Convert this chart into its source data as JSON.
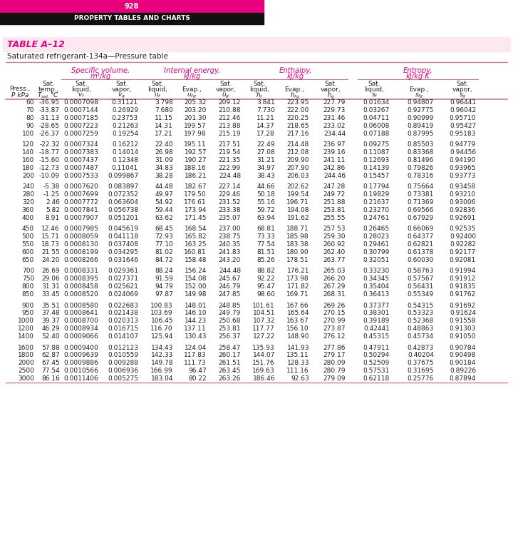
{
  "page_num": "928",
  "header_title": "PROPERTY TABLES AND CHARTS",
  "table_label": "TABLE A–12",
  "subtitle": "Saturated refrigerant-134a—Pressure table",
  "magenta": "#e6007e",
  "dark": "#1a1a1a",
  "pink_bg": "#fce8f0",
  "line_color": "#d4789a",
  "text_color": "#222222",
  "rows": [
    [
      60,
      -36.95,
      "0.0007098",
      "0.31121",
      "3.798",
      "205.32",
      "209.12",
      "3.841",
      "223.95",
      "227.79",
      "0.01634",
      "0.94807",
      "0.96441"
    ],
    [
      70,
      -33.87,
      "0.0007144",
      "0.26929",
      "7.680",
      "203.20",
      "210.88",
      "7.730",
      "222.00",
      "229.73",
      "0.03267",
      "0.92775",
      "0.96042"
    ],
    [
      80,
      -31.13,
      "0.0007185",
      "0.23753",
      "11.15",
      "201.30",
      "212.46",
      "11.21",
      "220.25",
      "231.46",
      "0.04711",
      "0.90999",
      "0.95710"
    ],
    [
      90,
      -28.65,
      "0.0007223",
      "0.21263",
      "14.31",
      "199.57",
      "213.88",
      "14.37",
      "218.65",
      "233.02",
      "0.06008",
      "0.89419",
      "0.95427"
    ],
    [
      100,
      -26.37,
      "0.0007259",
      "0.19254",
      "17.21",
      "197.98",
      "215.19",
      "17.28",
      "217.16",
      "234.44",
      "0.07188",
      "0.87995",
      "0.95183"
    ],
    null,
    [
      120,
      -22.32,
      "0.0007324",
      "0.16212",
      "22.40",
      "195.11",
      "217.51",
      "22.49",
      "214.48",
      "236.97",
      "0.09275",
      "0.85503",
      "0.94779"
    ],
    [
      140,
      -18.77,
      "0.0007383",
      "0.14014",
      "26.98",
      "192.57",
      "219.54",
      "27.08",
      "212.08",
      "239.16",
      "0.11087",
      "0.83368",
      "0.94456"
    ],
    [
      160,
      -15.6,
      "0.0007437",
      "0.12348",
      "31.09",
      "190.27",
      "221.35",
      "31.21",
      "209.90",
      "241.11",
      "0.12693",
      "0.81496",
      "0.94190"
    ],
    [
      180,
      -12.73,
      "0.0007487",
      "0.11041",
      "34.83",
      "188.16",
      "222.99",
      "34.97",
      "207.90",
      "242.86",
      "0.14139",
      "0.79826",
      "0.93965"
    ],
    [
      200,
      -10.09,
      "0.0007533",
      "0.099867",
      "38.28",
      "186.21",
      "224.48",
      "38.43",
      "206.03",
      "244.46",
      "0.15457",
      "0.78316",
      "0.93773"
    ],
    null,
    [
      240,
      -5.38,
      "0.0007620",
      "0.083897",
      "44.48",
      "182.67",
      "227.14",
      "44.66",
      "202.62",
      "247.28",
      "0.17794",
      "0.75664",
      "0.93458"
    ],
    [
      280,
      -1.25,
      "0.0007699",
      "0.072352",
      "49.97",
      "179.50",
      "229.46",
      "50.18",
      "199.54",
      "249.72",
      "0.19829",
      "0.73381",
      "0.93210"
    ],
    [
      320,
      2.46,
      "0.0007772",
      "0.063604",
      "54.92",
      "176.61",
      "231.52",
      "55.16",
      "196.71",
      "251.88",
      "0.21637",
      "0.71369",
      "0.93006"
    ],
    [
      360,
      5.82,
      "0.0007841",
      "0.056738",
      "59.44",
      "173.94",
      "233.38",
      "59.72",
      "194.08",
      "253.81",
      "0.23270",
      "0.69566",
      "0.92836"
    ],
    [
      400,
      8.91,
      "0.0007907",
      "0.051201",
      "63.62",
      "171.45",
      "235.07",
      "63.94",
      "191.62",
      "255.55",
      "0.24761",
      "0.67929",
      "0.92691"
    ],
    null,
    [
      450,
      12.46,
      "0.0007985",
      "0.045619",
      "68.45",
      "168.54",
      "237.00",
      "68.81",
      "188.71",
      "257.53",
      "0.26465",
      "0.66069",
      "0.92535"
    ],
    [
      500,
      15.71,
      "0.0008059",
      "0.041118",
      "72.93",
      "165.82",
      "238.75",
      "73.33",
      "185.98",
      "259.30",
      "0.28023",
      "0.64377",
      "0.92400"
    ],
    [
      550,
      18.73,
      "0.0008130",
      "0.037408",
      "77.10",
      "163.25",
      "240.35",
      "77.54",
      "183.38",
      "260.92",
      "0.29461",
      "0.62821",
      "0.92282"
    ],
    [
      600,
      21.55,
      "0.0008199",
      "0.034295",
      "81.02",
      "160.81",
      "241.83",
      "81.51",
      "180.90",
      "262.40",
      "0.30799",
      "0.61378",
      "0.92177"
    ],
    [
      650,
      24.2,
      "0.0008266",
      "0.031646",
      "84.72",
      "158.48",
      "243.20",
      "85.26",
      "178.51",
      "263.77",
      "0.32051",
      "0.60030",
      "0.92081"
    ],
    null,
    [
      700,
      26.69,
      "0.0008331",
      "0.029361",
      "88.24",
      "156.24",
      "244.48",
      "88.82",
      "176.21",
      "265.03",
      "0.33230",
      "0.58763",
      "0.91994"
    ],
    [
      750,
      29.06,
      "0.0008395",
      "0.027371",
      "91.59",
      "154.08",
      "245.67",
      "92.22",
      "173.98",
      "266.20",
      "0.34345",
      "0.57567",
      "0.91912"
    ],
    [
      800,
      31.31,
      "0.0008458",
      "0.025621",
      "94.79",
      "152.00",
      "246.79",
      "95.47",
      "171.82",
      "267.29",
      "0.35404",
      "0.56431",
      "0.91835"
    ],
    [
      850,
      33.45,
      "0.0008520",
      "0.024069",
      "97.87",
      "149.98",
      "247.85",
      "98.60",
      "169.71",
      "268.31",
      "0.36413",
      "0.55349",
      "0.91762"
    ],
    null,
    [
      900,
      35.51,
      "0.0008580",
      "0.022683",
      "100.83",
      "148.01",
      "248.85",
      "101.61",
      "167.66",
      "269.26",
      "0.37377",
      "0.54315",
      "0.91692"
    ],
    [
      950,
      37.48,
      "0.0008641",
      "0.021438",
      "103.69",
      "146.10",
      "249.79",
      "104.51",
      "165.64",
      "270.15",
      "0.38301",
      "0.53323",
      "0.91624"
    ],
    [
      1000,
      39.37,
      "0.0008700",
      "0.020313",
      "106.45",
      "144.23",
      "250.68",
      "107.32",
      "163.67",
      "270.99",
      "0.39189",
      "0.52368",
      "0.91558"
    ],
    [
      1200,
      46.29,
      "0.0008934",
      "0.016715",
      "116.70",
      "137.11",
      "253.81",
      "117.77",
      "156.10",
      "273.87",
      "0.42441",
      "0.48863",
      "0.91303"
    ],
    [
      1400,
      52.4,
      "0.0009066",
      "0.014107",
      "125.94",
      "130.43",
      "256.37",
      "127.22",
      "148.90",
      "276.12",
      "0.45315",
      "0.45734",
      "0.91050"
    ],
    null,
    [
      1600,
      57.88,
      "0.0009400",
      "0.012123",
      "134.43",
      "124.04",
      "258.47",
      "135.93",
      "141.93",
      "277.86",
      "0.47911",
      "0.42873",
      "0.90784"
    ],
    [
      1800,
      62.87,
      "0.0009639",
      "0.010559",
      "142.33",
      "117.83",
      "260.17",
      "144.07",
      "135.11",
      "279.17",
      "0.50294",
      "0.40204",
      "0.90498"
    ],
    [
      2000,
      67.45,
      "0.0009886",
      "0.009288",
      "149.78",
      "111.73",
      "261.51",
      "151.76",
      "128.33",
      "280.09",
      "0.52509",
      "0.37675",
      "0.90184"
    ],
    [
      2500,
      77.54,
      "0.0010566",
      "0.006936",
      "166.99",
      "96.47",
      "263.45",
      "169.63",
      "111.16",
      "280.79",
      "0.57531",
      "0.31695",
      "0.89226"
    ],
    [
      3000,
      86.16,
      "0.0011406",
      "0.005275",
      "183.04",
      "80.22",
      "263.26",
      "186.46",
      "92.63",
      "279.09",
      "0.62118",
      "0.25776",
      "0.87894"
    ]
  ]
}
